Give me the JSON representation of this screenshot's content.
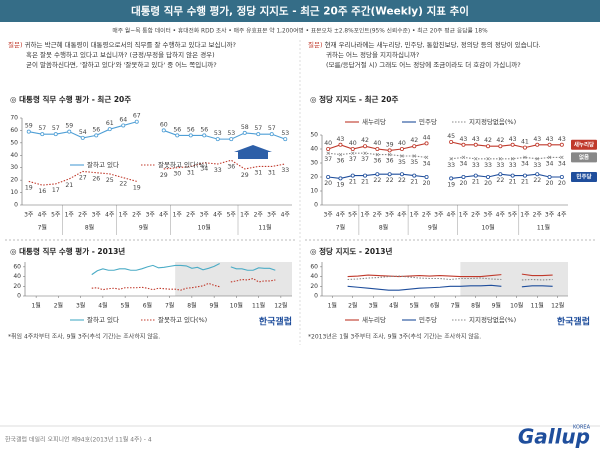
{
  "header": {
    "title": "대통령 직무 수행 평가, 정당 지지도 - 최근 20주 주간(Weekly) 지표 추이",
    "subtitle": "매주 월~목 통합 데이터 • 휴대전화 RDD 조사 • 매주 유효표본 약 1,200여명 • 표본오차 ±2.8%포인트(95% 신뢰수준) • 최근 20주 평균 응답률 18%"
  },
  "questions": [
    {
      "label": "질문)",
      "lines": [
        "귀하는 박근혜 대통령이 대통령으로서의 직무를 잘 수행하고 있다고 보십니까?",
        "혹은 잘못 수행하고 있다고 보십니까? (긍정/부정을 답하지 않은 경우)",
        "굳이 말씀하신다면, '잘하고 있다'와 '잘못하고 있다' 중 어느 쪽입니까?"
      ]
    },
    {
      "label": "질문)",
      "lines": [
        "현재 우리나라에는 새누리당, 민주당, 통합진보당, 정의당 등의 정당이 있습니다.",
        "귀하는 어느 정당을 지지하십니까?",
        "(모름/응답거절 시) 그래도 어느 정당에 조금이라도 더 호감이 가십니까?"
      ]
    }
  ],
  "chart_data": [
    {
      "type": "line",
      "title": "◎ 대통령 직무 수행 평가 - 최근 20주",
      "categories": [
        "3주",
        "4주",
        "5주",
        "1주",
        "2주",
        "3주",
        "4주",
        "1주",
        "2주",
        "3주",
        "4주",
        "1주",
        "2주",
        "3주",
        "4주",
        "5주",
        "1주",
        "2주",
        "3주",
        "4주"
      ],
      "months": [
        "7월",
        null,
        null,
        "8월",
        null,
        null,
        null,
        "9월",
        null,
        null,
        null,
        "10월",
        null,
        null,
        null,
        null,
        "11월",
        null,
        null,
        null
      ],
      "series": [
        {
          "name": "잘하고 있다",
          "color": "#4f9fd6",
          "dash": "solid",
          "marker": "circle",
          "label_position": "above",
          "values": [
            59,
            57,
            57,
            59,
            54,
            56,
            61,
            64,
            67,
            null,
            60,
            56,
            56,
            56,
            53,
            53,
            58,
            57,
            57,
            53
          ]
        },
        {
          "name": "잘못하고 있다(%)",
          "color": "#c0392b",
          "dash": "dotted",
          "marker": "none",
          "label_position": "below",
          "values": [
            19,
            16,
            17,
            21,
            27,
            26,
            25,
            22,
            19,
            null,
            29,
            30,
            31,
            34,
            33,
            36,
            29,
            31,
            31,
            33
          ]
        }
      ],
      "ylim": [
        0,
        70
      ],
      "yticks": [
        0,
        10,
        20,
        30,
        40,
        50,
        60,
        70
      ],
      "show_values": true,
      "grid": false
    },
    {
      "type": "line",
      "title": "◎ 정당 지지도 - 최근 20주",
      "categories": [
        "3주",
        "4주",
        "5주",
        "1주",
        "2주",
        "3주",
        "4주",
        "1주",
        "2주",
        "3주",
        "4주",
        "1주",
        "2주",
        "3주",
        "4주",
        "5주",
        "1주",
        "2주",
        "3주",
        "4주"
      ],
      "months": [
        "7월",
        null,
        null,
        "8월",
        null,
        null,
        null,
        "9월",
        null,
        null,
        null,
        "10월",
        null,
        null,
        null,
        null,
        "11월",
        null,
        null,
        null
      ],
      "series": [
        {
          "name": "새누리당",
          "end_label": "새누리당",
          "color": "#c0392b",
          "dash": "solid",
          "marker": "circle",
          "label_position": "above",
          "values": [
            40,
            43,
            40,
            42,
            40,
            39,
            40,
            42,
            44,
            null,
            45,
            43,
            43,
            42,
            42,
            43,
            41,
            43,
            43,
            43
          ]
        },
        {
          "name": "민주당",
          "end_label": "민주당",
          "color": "#1f4e9c",
          "dash": "solid",
          "marker": "circle",
          "label_position": "below",
          "values": [
            20,
            19,
            21,
            21,
            22,
            22,
            22,
            21,
            20,
            null,
            19,
            20,
            21,
            20,
            22,
            21,
            21,
            22,
            20,
            20
          ]
        },
        {
          "name": "지지정당없음(%)",
          "end_label": "없음",
          "color": "#888888",
          "dash": "dotted",
          "marker": "x",
          "label_position": "below",
          "values": [
            37,
            36,
            37,
            37,
            36,
            36,
            35,
            35,
            34,
            null,
            33,
            34,
            33,
            33,
            33,
            33,
            34,
            33,
            34,
            34
          ]
        }
      ],
      "ylim": [
        0,
        50
      ],
      "yticks": [
        0,
        10,
        20,
        30,
        40,
        50
      ],
      "show_values": true,
      "grid": false
    },
    {
      "type": "line",
      "title": "◎ 대통령 직무 수행 평가 - 2013년",
      "x": [
        3.5,
        3.75,
        4,
        4.25,
        4.5,
        4.75,
        5,
        5.25,
        5.5,
        5.75,
        6,
        6.25,
        6.5,
        6.75,
        7,
        7.25,
        7.5,
        7.75,
        8,
        8.25,
        8.5,
        8.75,
        9,
        9.25,
        9.5,
        9.75,
        10,
        10.25,
        10.5,
        10.75,
        11,
        11.25,
        11.5,
        11.75
      ],
      "xlim": [
        0.5,
        12.5
      ],
      "xticks": [
        {
          "value": 1,
          "label": "1월"
        },
        {
          "value": 2,
          "label": "2월"
        },
        {
          "value": 3,
          "label": "3월"
        },
        {
          "value": 4,
          "label": "4월"
        },
        {
          "value": 5,
          "label": "5월"
        },
        {
          "value": 6,
          "label": "6월"
        },
        {
          "value": 7,
          "label": "7월"
        },
        {
          "value": 8,
          "label": "8월"
        },
        {
          "value": 9,
          "label": "9월"
        },
        {
          "value": 10,
          "label": "10월"
        },
        {
          "value": 11,
          "label": "11월"
        },
        {
          "value": 12,
          "label": "12월"
        }
      ],
      "shaded_range": [
        7.25,
        12.5
      ],
      "series": [
        {
          "name": "잘하고 있다",
          "color": "#4bacc6",
          "dash": "solid",
          "marker": "none",
          "values": [
            44,
            52,
            56,
            53,
            53,
            56,
            56,
            53,
            53,
            56,
            60,
            63,
            58,
            59,
            61,
            63,
            63,
            62,
            57,
            59,
            54,
            57,
            61,
            67,
            null,
            60,
            56,
            56,
            53,
            53,
            58,
            57,
            57,
            53
          ]
        },
        {
          "name": "잘못하고 있다(%)",
          "color": "#c0392b",
          "dash": "dotted",
          "marker": "none",
          "values": [
            16,
            17,
            13,
            15,
            16,
            14,
            17,
            17,
            17,
            18,
            16,
            13,
            16,
            15,
            14,
            14,
            12,
            16,
            17,
            19,
            21,
            26,
            22,
            19,
            null,
            29,
            31,
            34,
            33,
            36,
            29,
            31,
            31,
            33
          ]
        }
      ],
      "ylim": [
        0,
        70
      ],
      "yticks": [
        0,
        20,
        40,
        60
      ],
      "show_values": false,
      "grid": false,
      "logo": "한국갤럽",
      "note": "*취임 4주차부터 조사, 9월 3주(추석 기간)는 조사하지 않음."
    },
    {
      "type": "line",
      "title": "◎ 정당 지지도 - 2013년",
      "x": [
        1.75,
        2.25,
        2.75,
        3.25,
        3.75,
        4.25,
        4.75,
        5.25,
        5.75,
        6.25,
        6.75,
        7.25,
        7.75,
        8.25,
        8.75,
        9.25,
        9.75,
        10.25,
        10.75,
        11.25,
        11.75
      ],
      "xlim": [
        0.5,
        12.5
      ],
      "xticks": [
        {
          "value": 1,
          "label": "1월"
        },
        {
          "value": 2,
          "label": "2월"
        },
        {
          "value": 3,
          "label": "3월"
        },
        {
          "value": 4,
          "label": "4월"
        },
        {
          "value": 5,
          "label": "5월"
        },
        {
          "value": 6,
          "label": "6월"
        },
        {
          "value": 7,
          "label": "7월"
        },
        {
          "value": 8,
          "label": "8월"
        },
        {
          "value": 9,
          "label": "9월"
        },
        {
          "value": 10,
          "label": "10월"
        },
        {
          "value": 11,
          "label": "11월"
        },
        {
          "value": 12,
          "label": "12월"
        }
      ],
      "shaded_range": [
        7.25,
        12.5
      ],
      "series": [
        {
          "name": "새누리당",
          "color": "#c0392b",
          "dash": "solid",
          "marker": "none",
          "values": [
            40,
            41,
            43,
            42,
            41,
            40,
            41,
            42,
            41,
            42,
            41,
            40,
            40,
            40,
            42,
            44,
            null,
            45,
            42,
            42,
            43
          ]
        },
        {
          "name": "민주당",
          "color": "#1f4e9c",
          "dash": "solid",
          "marker": "none",
          "values": [
            20,
            18,
            16,
            14,
            12,
            12,
            14,
            16,
            17,
            18,
            20,
            20,
            21,
            21,
            22,
            20,
            null,
            19,
            21,
            21,
            20
          ]
        },
        {
          "name": "지지정당없음(%)",
          "color": "#888888",
          "dash": "dotted",
          "marker": "none",
          "values": [
            34,
            35,
            37,
            38,
            40,
            41,
            39,
            37,
            36,
            36,
            34,
            36,
            36,
            37,
            35,
            34,
            null,
            33,
            34,
            33,
            34
          ]
        }
      ],
      "ylim": [
        0,
        70
      ],
      "yticks": [
        0,
        20,
        40,
        60
      ],
      "show_values": false,
      "grid": false,
      "logo": "한국갤럽",
      "note": "*2013년은 1월 3주부터 조사, 9월 3주(추석 기간)는 조사하지 않음."
    }
  ],
  "footer": {
    "source": "한국갤럽 데일리 오피니언 제94호(2013년 11월 4주) - 4",
    "brand": "Gallup",
    "brand_sub": "KOREA"
  }
}
